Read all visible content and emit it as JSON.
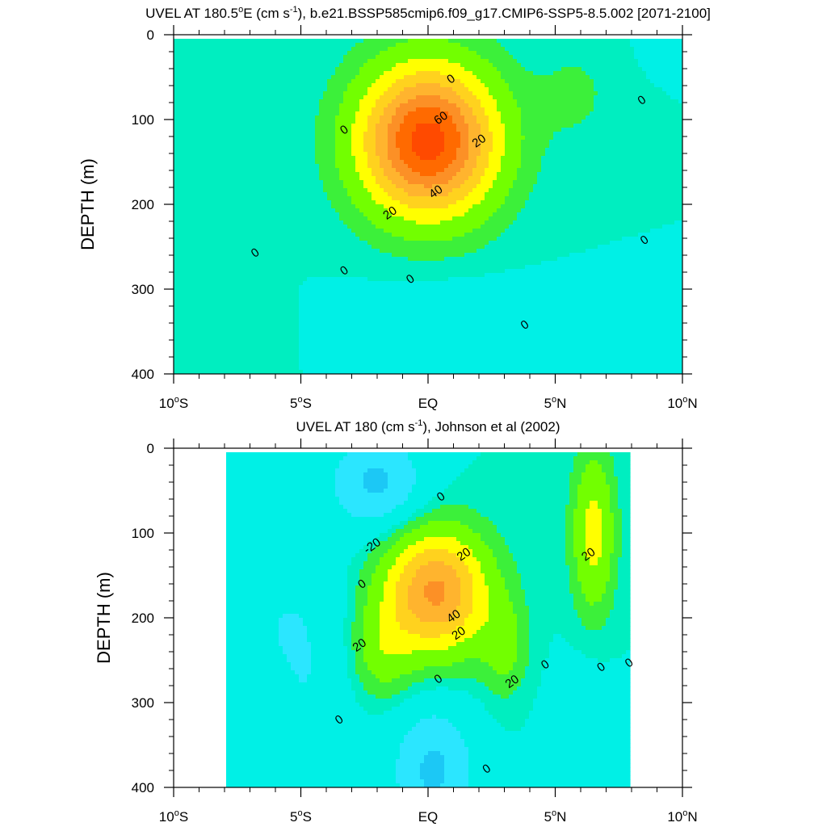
{
  "chart_data": [
    {
      "type": "contour",
      "title": {
        "pre": "UVEL AT 180.5",
        "deg": "o",
        "mid": "E (cm s",
        "sup": "-1",
        "post": "), b.e21.BSSP585cmip6.f09_g17.CMIP6-SSP5-8.5.002 [2071-2100]"
      },
      "ylabel": "DEPTH (m)",
      "x_range": [
        -10,
        10
      ],
      "y_range": [
        0,
        400
      ],
      "y_reversed": true,
      "x_major_ticks": [
        -10,
        -5,
        0,
        5,
        10
      ],
      "y_major_ticks": [
        0,
        100,
        200,
        300,
        400
      ],
      "x_tick_labels": [
        {
          "num": "10",
          "deg": "o",
          "hemi": "S"
        },
        {
          "num": "5",
          "deg": "o",
          "hemi": "S"
        },
        {
          "num": "EQ",
          "deg": "",
          "hemi": ""
        },
        {
          "num": "5",
          "deg": "o",
          "hemi": "N"
        },
        {
          "num": "10",
          "deg": "o",
          "hemi": "N"
        }
      ],
      "y_tick_labels": [
        "0",
        "100",
        "200",
        "300",
        "400"
      ],
      "contour_interval": 10,
      "data_extent": {
        "lon": [
          -10,
          10
        ],
        "depth": [
          5,
          400
        ]
      },
      "features": [
        {
          "lon": 0,
          "depth": 125,
          "value": 75,
          "width": 2.6,
          "height": 85
        },
        {
          "lon": 5.8,
          "depth": 70,
          "value": 5,
          "width": 1.6,
          "height": 60
        },
        {
          "lon": 0.5,
          "depth": 360,
          "value": -5,
          "width": 3.3,
          "height": 70
        },
        {
          "lon": 10,
          "depth": 15,
          "value": -5,
          "width": 1.2,
          "height": 25
        },
        {
          "lon": -10,
          "depth": 380,
          "value": 4,
          "width": 3.0,
          "height": 90
        }
      ],
      "contour_labels": [
        {
          "text": "0",
          "lon": 0.9,
          "depth": 52
        },
        {
          "text": "0",
          "lon": -3.3,
          "depth": 112
        },
        {
          "text": "0",
          "lon": 8.4,
          "depth": 77
        },
        {
          "text": "60",
          "lon": 0.5,
          "depth": 98
        },
        {
          "text": "20",
          "lon": 2.0,
          "depth": 125
        },
        {
          "text": "40",
          "lon": 0.3,
          "depth": 185
        },
        {
          "text": "20",
          "lon": -1.5,
          "depth": 210
        },
        {
          "text": "0",
          "lon": -6.8,
          "depth": 257
        },
        {
          "text": "0",
          "lon": -3.3,
          "depth": 278
        },
        {
          "text": "0",
          "lon": -0.7,
          "depth": 288
        },
        {
          "text": "0",
          "lon": 3.8,
          "depth": 342
        },
        {
          "text": "0",
          "lon": 8.5,
          "depth": 242
        }
      ]
    },
    {
      "type": "contour",
      "title": {
        "pre": "UVEL AT 180 (cm s",
        "deg": "",
        "mid": "",
        "sup": "-1",
        "post": "), Johnson et al (2002)"
      },
      "ylabel": "DEPTH (m)",
      "x_range": [
        -10,
        10
      ],
      "y_range": [
        0,
        400
      ],
      "y_reversed": true,
      "x_major_ticks": [
        -10,
        -5,
        0,
        5,
        10
      ],
      "y_major_ticks": [
        0,
        100,
        200,
        300,
        400
      ],
      "x_tick_labels": [
        {
          "num": "10",
          "deg": "o",
          "hemi": "S"
        },
        {
          "num": "5",
          "deg": "o",
          "hemi": "S"
        },
        {
          "num": "EQ",
          "deg": "",
          "hemi": ""
        },
        {
          "num": "5",
          "deg": "o",
          "hemi": "N"
        },
        {
          "num": "10",
          "deg": "o",
          "hemi": "N"
        }
      ],
      "y_tick_labels": [
        "0",
        "100",
        "200",
        "300",
        "400"
      ],
      "contour_interval": 10,
      "data_extent": {
        "lon": [
          -8,
          8
        ],
        "depth": [
          5,
          400
        ]
      },
      "features": [
        {
          "lon": 0.3,
          "depth": 170,
          "value": 52,
          "width": 2.0,
          "height": 70
        },
        {
          "lon": -1.8,
          "depth": 240,
          "value": 14,
          "width": 1.2,
          "height": 55
        },
        {
          "lon": 3.0,
          "depth": 235,
          "value": 12,
          "width": 0.9,
          "height": 55
        },
        {
          "lon": 6.5,
          "depth": 100,
          "value": 24,
          "width": 0.8,
          "height": 90
        },
        {
          "lon": 0.2,
          "depth": 380,
          "value": -22,
          "width": 1.6,
          "height": 75
        },
        {
          "lon": -2.0,
          "depth": 40,
          "value": -22,
          "width": 1.8,
          "height": 55
        },
        {
          "lon": -5.5,
          "depth": 250,
          "value": -12,
          "width": 2.2,
          "height": 140
        },
        {
          "lon": 6.0,
          "depth": 350,
          "value": -9,
          "width": 1.2,
          "height": 80
        },
        {
          "lon": -6.0,
          "depth": 300,
          "value": 6,
          "width": 0.8,
          "height": 60
        }
      ],
      "contour_labels": [
        {
          "text": "0",
          "lon": 0.5,
          "depth": 57
        },
        {
          "text": "-20",
          "lon": -2.2,
          "depth": 115
        },
        {
          "text": "20",
          "lon": 1.4,
          "depth": 125
        },
        {
          "text": "20",
          "lon": 6.3,
          "depth": 125
        },
        {
          "text": "0",
          "lon": -2.6,
          "depth": 160
        },
        {
          "text": "40",
          "lon": 1.0,
          "depth": 198
        },
        {
          "text": "20",
          "lon": 1.2,
          "depth": 218
        },
        {
          "text": "20",
          "lon": -2.7,
          "depth": 232
        },
        {
          "text": "0",
          "lon": 4.6,
          "depth": 255
        },
        {
          "text": "0",
          "lon": 6.8,
          "depth": 258
        },
        {
          "text": "0",
          "lon": 7.9,
          "depth": 253
        },
        {
          "text": "0",
          "lon": 0.4,
          "depth": 272
        },
        {
          "text": "20",
          "lon": 3.3,
          "depth": 275
        },
        {
          "text": "0",
          "lon": -3.5,
          "depth": 320
        },
        {
          "text": "0",
          "lon": 2.3,
          "depth": 378
        }
      ]
    }
  ],
  "colors": {
    "levels": [
      {
        "lo": -999,
        "color": "#2f82e6"
      },
      {
        "lo": -30,
        "color": "#1cc8f5"
      },
      {
        "lo": -20,
        "color": "#2be6ff"
      },
      {
        "lo": -10,
        "color": "#00f0e6"
      },
      {
        "lo": 0,
        "color": "#00eec0"
      },
      {
        "lo": 4,
        "color": "#3cf03a"
      },
      {
        "lo": 10,
        "color": "#72ff00"
      },
      {
        "lo": 20,
        "color": "#ffff00"
      },
      {
        "lo": 30,
        "color": "#ffd21e"
      },
      {
        "lo": 40,
        "color": "#ffb42e"
      },
      {
        "lo": 50,
        "color": "#fc9026"
      },
      {
        "lo": 60,
        "color": "#ff6a00"
      },
      {
        "lo": 70,
        "color": "#ff4a00"
      }
    ]
  }
}
